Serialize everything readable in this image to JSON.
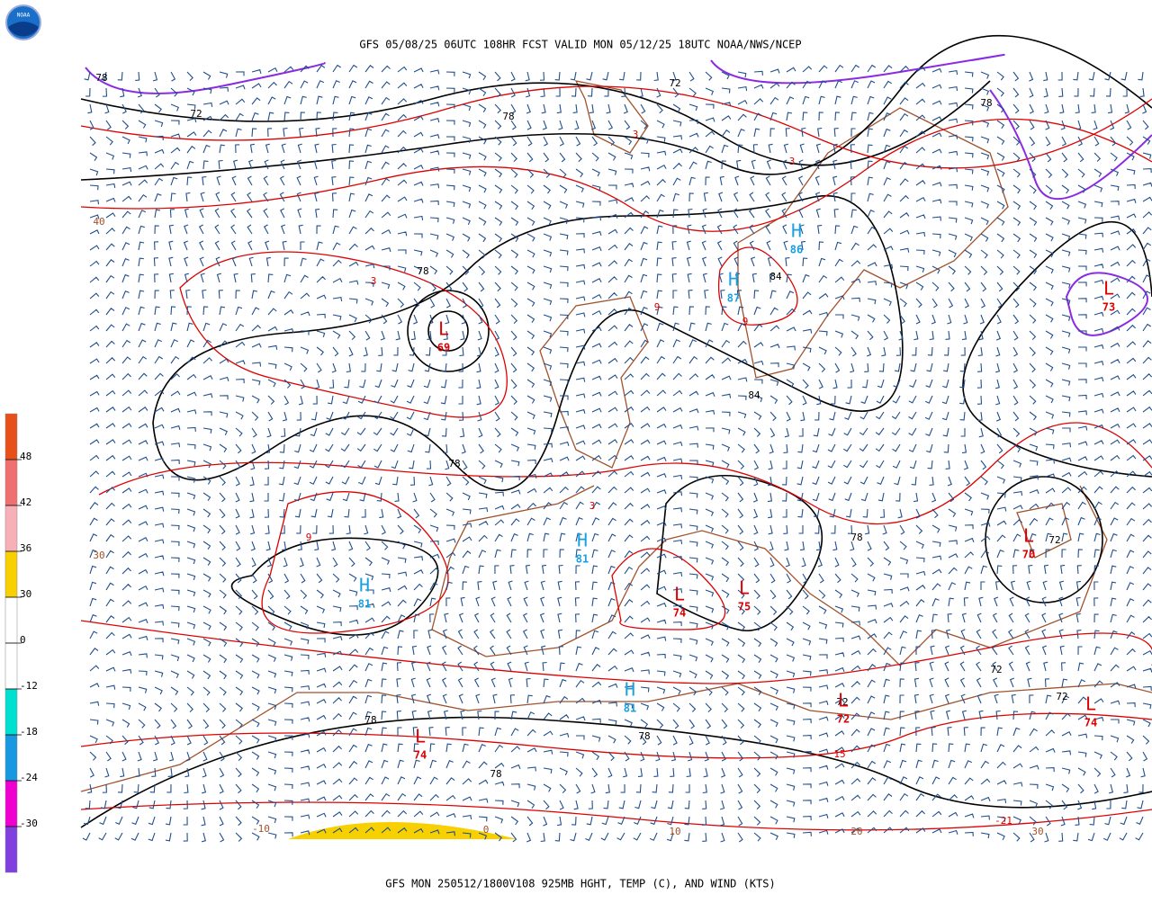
{
  "header": {
    "title": "GFS 05/08/25 06UTC 108HR FCST VALID MON 05/12/25 18UTC NOAA/NWS/NCEP",
    "logo": "NOAA"
  },
  "footer": {
    "caption": "GFS MON 250512/1800V108 925MB HGHT, TEMP (C), AND WIND (KTS)"
  },
  "colorbar": {
    "colors": [
      "#e8501a",
      "#f07070",
      "#f8b0b8",
      "#f8d000",
      "#ffffff",
      "#ffffff",
      "#00e0d0",
      "#1898e0",
      "#f000d0",
      "#8040e0"
    ],
    "labels": [
      48,
      42,
      36,
      30,
      0,
      -12,
      -18,
      -24,
      -30
    ]
  },
  "map": {
    "height_labels": [
      "78",
      "72",
      "78",
      "72",
      "78",
      "84",
      "84",
      "78",
      "78",
      "72",
      "72",
      "72",
      "72",
      "78",
      "78",
      "78",
      "78"
    ],
    "temp_labels": [
      "3",
      "3",
      "3",
      "9",
      "9",
      "3",
      "9",
      "15",
      "-21"
    ],
    "grid_labels": [
      "30",
      "40",
      "-10",
      "0",
      "10",
      "20",
      "30"
    ],
    "centers": [
      {
        "symbol": "L",
        "value": "69"
      },
      {
        "symbol": "H",
        "value": "86"
      },
      {
        "symbol": "H",
        "value": "87"
      },
      {
        "symbol": "H",
        "value": "81"
      },
      {
        "symbol": "H",
        "value": "81"
      },
      {
        "symbol": "L",
        "value": "74"
      },
      {
        "symbol": "L",
        "value": "75"
      },
      {
        "symbol": "L",
        "value": "70"
      },
      {
        "symbol": "L",
        "value": "72"
      },
      {
        "symbol": "H",
        "value": "81"
      },
      {
        "symbol": "L",
        "value": "74"
      },
      {
        "symbol": "L",
        "value": "73"
      },
      {
        "symbol": "L",
        "value": "74"
      }
    ]
  }
}
